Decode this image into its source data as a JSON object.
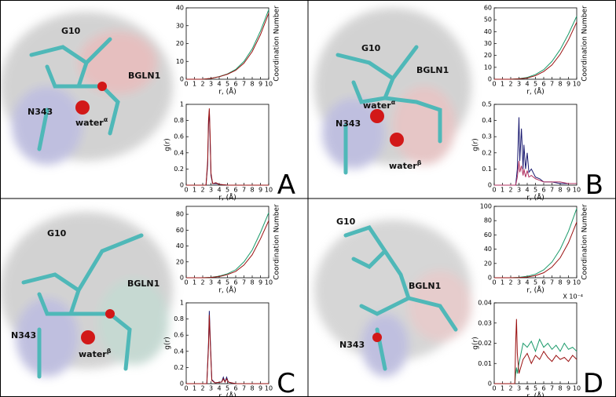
{
  "chart_data": [
    {
      "type": "line",
      "xlabel": "r, (Å)",
      "ylabel": "Coordination Number",
      "x": [
        0,
        1,
        2,
        3,
        4,
        5,
        6,
        7,
        8,
        9,
        10
      ],
      "xlim": [
        0,
        10
      ],
      "xticks": [
        0,
        1,
        2,
        3,
        4,
        5,
        6,
        7,
        8,
        9,
        10
      ],
      "ylim": [
        0,
        40
      ],
      "yticks": [
        0,
        10,
        20,
        30,
        40
      ],
      "series": [
        {
          "color": "#1a9a6a",
          "values": [
            0,
            0,
            0,
            0.5,
            1.5,
            3,
            5.5,
            10,
            17,
            27,
            39
          ]
        },
        {
          "color": "#9a1010",
          "values": [
            0,
            0,
            0,
            0.5,
            1.4,
            2.8,
            5,
            9,
            15.5,
            25,
            37
          ]
        }
      ]
    },
    {
      "type": "line",
      "xlabel": "r, (Å)",
      "ylabel": "g(r)",
      "x": [
        0,
        2.4,
        2.6,
        2.7,
        2.8,
        2.9,
        3.0,
        3.2,
        3.6,
        4,
        5,
        6,
        7,
        8,
        9,
        10
      ],
      "xlim": [
        0,
        10
      ],
      "xticks": [
        0,
        1,
        2,
        3,
        4,
        5,
        6,
        7,
        8,
        9,
        10
      ],
      "ylim": [
        0,
        1
      ],
      "yticks": [
        0,
        0.2,
        0.4,
        0.6,
        0.8,
        1
      ],
      "series": [
        {
          "color": "#1a1a70",
          "values": [
            0,
            0,
            0.25,
            0.75,
            0.92,
            0.55,
            0.12,
            0.02,
            0.02,
            0.01,
            0,
            0,
            0,
            0,
            0,
            0
          ]
        },
        {
          "color": "#9a1010",
          "values": [
            0,
            0,
            0.3,
            0.8,
            0.95,
            0.6,
            0.15,
            0.02,
            0.03,
            0.01,
            0,
            0,
            0,
            0,
            0,
            0
          ]
        }
      ]
    },
    {
      "type": "line",
      "xlabel": "r, (Å)",
      "ylabel": "Coordination Number",
      "x": [
        0,
        1,
        2,
        3,
        4,
        5,
        6,
        7,
        8,
        9,
        10
      ],
      "xlim": [
        0,
        10
      ],
      "xticks": [
        0,
        1,
        2,
        3,
        4,
        5,
        6,
        7,
        8,
        9,
        10
      ],
      "ylim": [
        0,
        60
      ],
      "yticks": [
        0,
        10,
        20,
        30,
        40,
        50,
        60
      ],
      "series": [
        {
          "color": "#1a9a6a",
          "values": [
            0,
            0,
            0,
            0.5,
            1.5,
            4,
            8,
            15,
            25,
            38,
            53
          ]
        },
        {
          "color": "#9a1010",
          "values": [
            0,
            0,
            0,
            0.3,
            1,
            3,
            6.5,
            12,
            21,
            33,
            48
          ]
        }
      ]
    },
    {
      "type": "line",
      "xlabel": "r, (Å)",
      "ylabel": "g(r)",
      "x": [
        0,
        2.6,
        2.8,
        3.0,
        3.1,
        3.3,
        3.5,
        3.6,
        3.8,
        4.0,
        4.2,
        4.5,
        5,
        5.5,
        6,
        7,
        8,
        9,
        10
      ],
      "xlim": [
        0,
        10
      ],
      "xticks": [
        0,
        1,
        2,
        3,
        4,
        5,
        6,
        7,
        8,
        9,
        10
      ],
      "ylim": [
        0,
        0.5
      ],
      "yticks": [
        0,
        0.1,
        0.2,
        0.3,
        0.4,
        0.5
      ],
      "series": [
        {
          "color": "#1a1a70",
          "values": [
            0,
            0,
            0.1,
            0.42,
            0.15,
            0.35,
            0.1,
            0.25,
            0.1,
            0.2,
            0.08,
            0.1,
            0.05,
            0.04,
            0.02,
            0.02,
            0.01,
            0.01,
            0.01
          ]
        },
        {
          "color": "#b03060",
          "values": [
            0,
            0,
            0.05,
            0.15,
            0.08,
            0.12,
            0.06,
            0.1,
            0.05,
            0.09,
            0.05,
            0.06,
            0.04,
            0.03,
            0.02,
            0.02,
            0.02,
            0.01,
            0.01
          ]
        }
      ]
    },
    {
      "type": "line",
      "xlabel": "r, (Å)",
      "ylabel": "Coordination Number",
      "x": [
        0,
        1,
        2,
        3,
        4,
        5,
        6,
        7,
        8,
        9,
        10
      ],
      "xlim": [
        0,
        10
      ],
      "xticks": [
        0,
        1,
        2,
        3,
        4,
        5,
        6,
        7,
        8,
        9,
        10
      ],
      "ylim": [
        0,
        90
      ],
      "yticks": [
        0,
        20,
        40,
        60,
        80
      ],
      "series": [
        {
          "color": "#1a9a6a",
          "values": [
            0,
            0,
            0,
            0.5,
            2,
            5,
            10,
            20,
            35,
            57,
            82
          ]
        },
        {
          "color": "#9a1010",
          "values": [
            0,
            0,
            0,
            0.4,
            1.5,
            4,
            8,
            16,
            29,
            49,
            72
          ]
        }
      ]
    },
    {
      "type": "line",
      "xlabel": "r, (Å)",
      "ylabel": "g(r)",
      "x": [
        0,
        2.5,
        2.7,
        2.8,
        2.9,
        3.1,
        3.5,
        4.3,
        4.5,
        4.7,
        4.9,
        5.1,
        5.5,
        6,
        7,
        8,
        9,
        10
      ],
      "xlim": [
        0,
        10
      ],
      "xticks": [
        0,
        1,
        2,
        3,
        4,
        5,
        6,
        7,
        8,
        9,
        10
      ],
      "ylim": [
        0,
        1
      ],
      "yticks": [
        0,
        0.2,
        0.4,
        0.6,
        0.8,
        1
      ],
      "series": [
        {
          "color": "#1a1a70",
          "values": [
            0,
            0,
            0.5,
            0.9,
            0.6,
            0.05,
            0.01,
            0.02,
            0.08,
            0.02,
            0.08,
            0.02,
            0.01,
            0,
            0,
            0,
            0,
            0
          ]
        },
        {
          "color": "#9a1010",
          "values": [
            0,
            0,
            0.45,
            0.85,
            0.55,
            0.04,
            0.01,
            0.02,
            0.06,
            0.02,
            0.06,
            0.02,
            0.01,
            0,
            0,
            0,
            0,
            0
          ]
        }
      ]
    },
    {
      "type": "line",
      "xlabel": "r, (Å)",
      "ylabel": "Coordination Number",
      "x": [
        0,
        1,
        2,
        3,
        4,
        5,
        6,
        7,
        8,
        9,
        10
      ],
      "xlim": [
        0,
        10
      ],
      "xticks": [
        0,
        1,
        2,
        3,
        4,
        5,
        6,
        7,
        8,
        9,
        10
      ],
      "ylim": [
        0,
        100
      ],
      "yticks": [
        0,
        20,
        40,
        60,
        80,
        100
      ],
      "series": [
        {
          "color": "#1a9a6a",
          "values": [
            0,
            0,
            0,
            0.5,
            2,
            5,
            11,
            22,
            40,
            65,
            97
          ]
        },
        {
          "color": "#9a1010",
          "values": [
            0,
            0,
            0,
            0.3,
            1,
            3,
            7,
            15,
            28,
            49,
            78
          ]
        }
      ]
    },
    {
      "type": "line",
      "xlabel": "r, (Å)",
      "ylabel": "g(r)",
      "annotation": "X 10⁻⁴",
      "x": [
        0,
        2.5,
        2.6,
        2.7,
        2.8,
        3,
        3.5,
        4,
        4.5,
        5,
        5.5,
        6,
        6.5,
        7,
        7.5,
        8,
        8.5,
        9,
        9.5,
        10
      ],
      "xlim": [
        0,
        10
      ],
      "xticks": [
        0,
        1,
        2,
        3,
        4,
        5,
        6,
        7,
        8,
        9,
        10
      ],
      "ylim": [
        0,
        0.04
      ],
      "yticks": [
        0,
        0.01,
        0.02,
        0.03,
        0.04
      ],
      "series": [
        {
          "color": "#1a9a6a",
          "values": [
            0,
            0,
            0.005,
            0.008,
            0.005,
            0.01,
            0.02,
            0.018,
            0.021,
            0.016,
            0.022,
            0.018,
            0.02,
            0.017,
            0.019,
            0.016,
            0.02,
            0.017,
            0.018,
            0.016
          ]
        },
        {
          "color": "#9a1010",
          "values": [
            0,
            0,
            0.02,
            0.032,
            0.015,
            0.005,
            0.012,
            0.015,
            0.01,
            0.014,
            0.012,
            0.016,
            0.013,
            0.011,
            0.014,
            0.012,
            0.013,
            0.011,
            0.014,
            0.012
          ]
        }
      ]
    }
  ],
  "panels": [
    {
      "letter": "A",
      "labels": [
        {
          "text": "G10"
        },
        {
          "text": "BGLN1"
        },
        {
          "text": "N343"
        },
        {
          "text": "water",
          "sup": "α"
        }
      ]
    },
    {
      "letter": "B",
      "labels": [
        {
          "text": "G10"
        },
        {
          "text": "BGLN1"
        },
        {
          "text": "N343"
        },
        {
          "text": "water",
          "sup": "α"
        },
        {
          "text": "water",
          "sup": "β"
        }
      ]
    },
    {
      "letter": "C",
      "labels": [
        {
          "text": "G10"
        },
        {
          "text": "BGLN1"
        },
        {
          "text": "N343"
        },
        {
          "text": "water",
          "sup": "β"
        }
      ]
    },
    {
      "letter": "D",
      "labels": [
        {
          "text": "G10"
        },
        {
          "text": "BGLN1"
        },
        {
          "text": "N343"
        }
      ]
    }
  ]
}
